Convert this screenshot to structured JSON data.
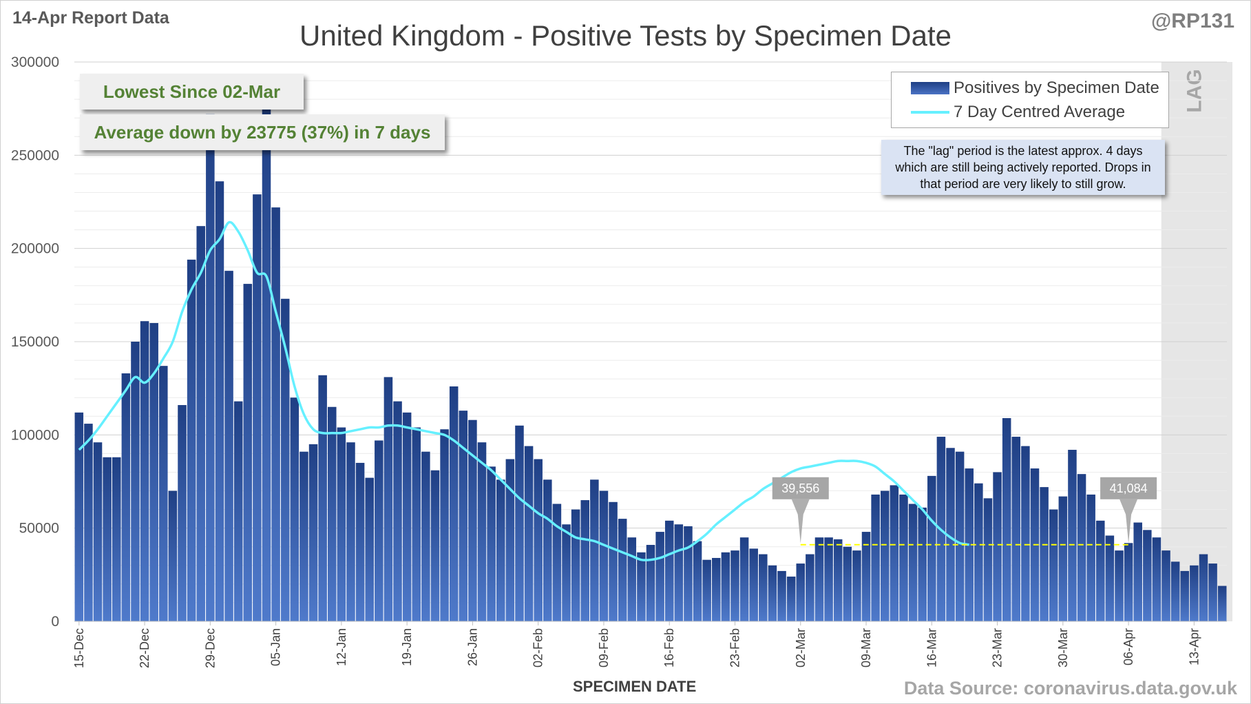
{
  "header": {
    "report_label": "14-Apr Report Data",
    "handle": "@RP131",
    "title": "United Kingdom - Positive Tests by Specimen Date"
  },
  "callouts": {
    "lowest": "Lowest Since 02-Mar",
    "average": "Average down by 23775 (37%) in 7 days"
  },
  "legend": {
    "bars_label": "Positives by Specimen Date",
    "line_label": "7 Day Centred Average"
  },
  "lag_note": "The \"lag\" period is the latest approx. 4 days which are still being actively reported. Drops in that period are very likely to still grow.",
  "lag_label": "LAG",
  "footer": {
    "xlabel": "SPECIMEN DATE",
    "source": "Data Source: coronavirus.data.gov.uk"
  },
  "colors": {
    "bar_top": "#1f3f84",
    "bar_bottom": "#4f7acb",
    "average_line": "#66f0ff",
    "reference_line": "#ffff00",
    "lag_shade": "#e6e6e6",
    "callout_text": "#548235",
    "pin": "#a6a6a6"
  },
  "chart_data": {
    "type": "bar",
    "title": "United Kingdom - Positive Tests by Specimen Date",
    "xlabel": "SPECIMEN DATE",
    "ylabel": "",
    "ylim": [
      0,
      300000
    ],
    "y_ticks": [
      "0",
      "50000",
      "100000",
      "150000",
      "200000",
      "250000",
      "300000"
    ],
    "x_ticks": [
      "15-Dec",
      "22-Dec",
      "29-Dec",
      "05-Jan",
      "12-Jan",
      "19-Jan",
      "26-Jan",
      "02-Feb",
      "09-Feb",
      "16-Feb",
      "23-Feb",
      "02-Mar",
      "09-Mar",
      "16-Mar",
      "23-Mar",
      "30-Mar",
      "06-Apr",
      "13-Apr"
    ],
    "start_date": "15-Dec",
    "end_date": "13-Apr",
    "grid": true,
    "legend_position": "top-right",
    "lag_period": [
      "10-Apr",
      "13-Apr"
    ],
    "series": [
      {
        "name": "Positives by Specimen Date",
        "type": "bar",
        "values": [
          112000,
          106000,
          96000,
          88000,
          88000,
          133000,
          150000,
          161000,
          160000,
          137000,
          70000,
          116000,
          194000,
          212000,
          272000,
          236000,
          188000,
          118000,
          181000,
          229000,
          276000,
          222000,
          173000,
          120000,
          91000,
          95000,
          132000,
          115000,
          104000,
          96000,
          85000,
          77000,
          97000,
          131000,
          118000,
          112000,
          104000,
          91000,
          81000,
          103000,
          126000,
          113000,
          108000,
          96000,
          83000,
          76000,
          87000,
          105000,
          94000,
          87000,
          76000,
          63000,
          52000,
          60000,
          65000,
          76000,
          70000,
          64000,
          55000,
          45000,
          37000,
          41000,
          48000,
          54000,
          52000,
          51000,
          43000,
          33000,
          34000,
          37000,
          38000,
          45000,
          39000,
          36000,
          30000,
          27000,
          24000,
          31000,
          36000,
          45000,
          45000,
          44000,
          40000,
          38000,
          48000,
          68000,
          70000,
          73000,
          68000,
          63000,
          61000,
          78000,
          99000,
          93000,
          91000,
          82000,
          74000,
          66000,
          80000,
          109000,
          99000,
          94000,
          82000,
          72000,
          60000,
          67000,
          92000,
          79000,
          68000,
          54000,
          46000,
          38000,
          42000,
          53000,
          49000,
          45000,
          38000,
          32000,
          27000,
          30000,
          36000,
          31000,
          19000
        ]
      },
      {
        "name": "7 Day Centred Average",
        "type": "line",
        "start_index": 0,
        "values": [
          92000,
          97000,
          103000,
          110000,
          117000,
          124000,
          131000,
          128000,
          133000,
          141000,
          150000,
          166000,
          178000,
          187000,
          199000,
          205000,
          214000,
          209000,
          199000,
          187000,
          185000,
          166000,
          147000,
          126000,
          111000,
          103000,
          101000,
          101000,
          101000,
          102000,
          103000,
          104000,
          104000,
          105000,
          105000,
          104000,
          103000,
          102000,
          101000,
          100000,
          97000,
          93000,
          89000,
          85000,
          81000,
          76000,
          71000,
          66000,
          62000,
          58000,
          55000,
          51000,
          48000,
          45000,
          44000,
          43000,
          41000,
          39000,
          37000,
          35000,
          33000,
          33000,
          34000,
          36000,
          38000,
          39600,
          43000,
          47000,
          52000,
          56000,
          60000,
          64000,
          67000,
          71000,
          74000,
          77000,
          80000,
          82000,
          83000,
          84000,
          85000,
          86000,
          86000,
          86000,
          85000,
          83000,
          79000,
          75000,
          70000,
          65000,
          60000,
          54000,
          49000,
          45000,
          42000,
          41084
        ]
      }
    ],
    "annotations": [
      {
        "label": "39,556",
        "date": "02-Mar"
      },
      {
        "label": "41,084",
        "date": "06-Apr"
      }
    ],
    "reference_line": {
      "value": 41084,
      "from": "02-Mar",
      "to": "06-Apr"
    }
  }
}
